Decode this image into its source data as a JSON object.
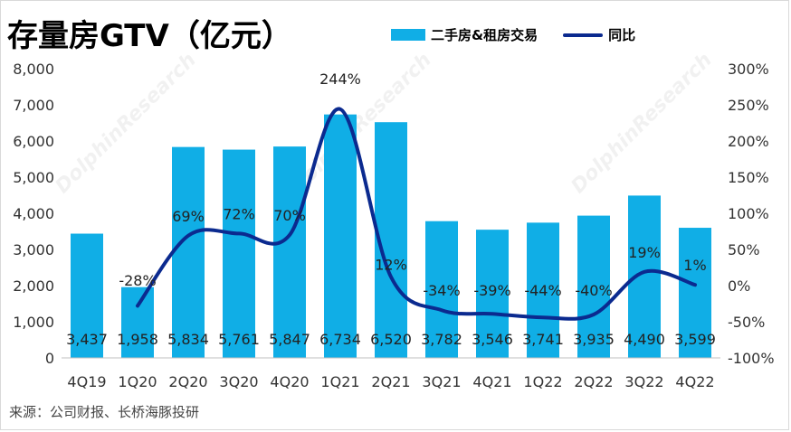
{
  "chart_data": {
    "type": "bar",
    "title": "存量房GTV（亿元）",
    "categories": [
      "4Q19",
      "1Q20",
      "2Q20",
      "3Q20",
      "4Q20",
      "1Q21",
      "2Q21",
      "3Q21",
      "4Q21",
      "1Q22",
      "2Q22",
      "3Q22",
      "4Q22"
    ],
    "series": [
      {
        "name": "二手房&租房交易",
        "kind": "bar",
        "axis": "left",
        "color": "#10aee6",
        "values": [
          3437,
          1958,
          5834,
          5761,
          5847,
          6734,
          6520,
          3782,
          3546,
          3741,
          3935,
          4490,
          3599
        ],
        "labels": [
          "3,437",
          "1,958",
          "5,834",
          "5,761",
          "5,847",
          "6,734",
          "6,520",
          "3,782",
          "3,546",
          "3,741",
          "3,935",
          "4,490",
          "3,599"
        ]
      },
      {
        "name": "同比",
        "kind": "line",
        "axis": "right",
        "color": "#0b2a8f",
        "values": [
          null,
          -28,
          69,
          72,
          70,
          244,
          12,
          -34,
          -39,
          -44,
          -40,
          19,
          1
        ],
        "labels": [
          "",
          "-28%",
          "69%",
          "72%",
          "70%",
          "244%",
          "12%",
          "-34%",
          "-39%",
          "-44%",
          "-40%",
          "19%",
          "1%"
        ]
      }
    ],
    "y_left": {
      "min": 0,
      "max": 8000,
      "ticks": [
        "0",
        "1,000",
        "2,000",
        "3,000",
        "4,000",
        "5,000",
        "6,000",
        "7,000",
        "8,000"
      ]
    },
    "y_right": {
      "min": -100,
      "max": 300,
      "ticks": [
        "-100%",
        "-50%",
        "0%",
        "50%",
        "100%",
        "150%",
        "200%",
        "250%",
        "300%"
      ]
    },
    "legend_position": "top-right",
    "grid": false
  },
  "source": "来源：公司财报、长桥海豚投研",
  "watermark": "DolphinResearch"
}
